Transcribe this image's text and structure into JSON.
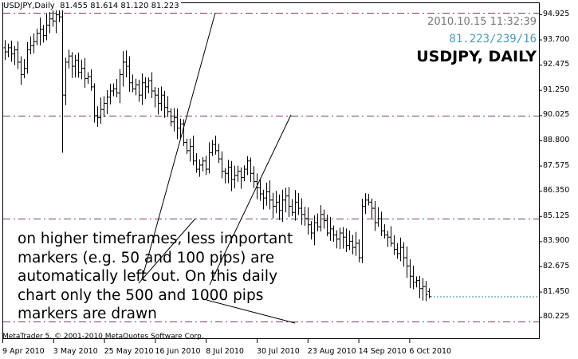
{
  "header": {
    "symbol_period": "USDJPY,Daily",
    "ohlc": "81.455 81.614 81.120 81.223"
  },
  "info": {
    "datetime": "2010.10.15 11:32:39",
    "price": "81.223∕239∕16",
    "title": "USDJPY, DAILY"
  },
  "annotation": "on higher timeframes, less important markers (e.g. 50 and 100 pips) are automatically left out. On this daily chart only the 500 and 1000 pips markers are drawn",
  "copyright": "MetaTrader 5, © 2001-2010 MetaQuotes Software Corp.",
  "colors": {
    "marker_line": "#7a3b6a",
    "bid_line": "#2f8f9f",
    "bars": "#000000",
    "background": "#ffffff"
  },
  "chart_data": {
    "type": "ohlc-bar",
    "y_range": [
      79.8,
      95.45
    ],
    "y_ticks": [
      "94.925",
      "93.700",
      "92.475",
      "91.250",
      "90.025",
      "88.800",
      "87.575",
      "86.350",
      "85.125",
      "83.900",
      "82.675",
      "81.450",
      "80.225"
    ],
    "x_ticks": [
      "9 Apr 2010",
      "3 May 2010",
      "25 May 2010",
      "16 Jun 2010",
      "8 Jul 2010",
      "30 Jul 2010",
      "23 Aug 2010",
      "14 Sep 2010",
      "6 Oct 2010"
    ],
    "marker_levels": [
      95.0,
      90.0,
      85.0,
      80.0
    ],
    "bid": 81.223,
    "closes": [
      93.1,
      93.3,
      93.0,
      93.2,
      92.6,
      92.0,
      92.3,
      93.2,
      93.4,
      93.6,
      94.0,
      94.2,
      93.9,
      94.4,
      94.7,
      94.6,
      94.9,
      94.8,
      91.0,
      92.6,
      92.9,
      92.4,
      92.7,
      92.1,
      92.3,
      91.8,
      91.9,
      91.4,
      90.0,
      89.9,
      90.3,
      90.6,
      90.9,
      91.2,
      91.3,
      91.1,
      92.0,
      92.6,
      92.4,
      91.6,
      91.3,
      91.5,
      91.0,
      91.6,
      91.4,
      91.7,
      91.2,
      91.0,
      90.6,
      91.0,
      90.4,
      90.2,
      89.7,
      89.9,
      89.4,
      89.6,
      88.7,
      88.3,
      88.5,
      87.8,
      87.4,
      87.6,
      87.8,
      87.4,
      88.2,
      88.6,
      88.3,
      87.9,
      87.3,
      87.2,
      87.5,
      86.9,
      87.1,
      87.3,
      87.0,
      87.4,
      87.8,
      87.2,
      86.8,
      86.5,
      86.2,
      86.0,
      86.3,
      85.9,
      85.6,
      85.8,
      85.4,
      85.9,
      86.1,
      85.6,
      85.3,
      85.8,
      85.5,
      85.2,
      85.0,
      84.7,
      84.3,
      84.8,
      84.6,
      85.2,
      84.9,
      84.3,
      84.5,
      84.2,
      84.0,
      84.3,
      84.1,
      83.7,
      83.9,
      83.6,
      83.8,
      83.1,
      85.6,
      85.9,
      85.8,
      85.5,
      84.8,
      85.0,
      84.4,
      84.2,
      84.1,
      83.8,
      83.5,
      83.3,
      83.6,
      83.1,
      82.7,
      82.2,
      81.9,
      82.0,
      81.6,
      81.7,
      81.3,
      81.223
    ],
    "last_bar": {
      "open": 81.455,
      "high": 81.614,
      "low": 81.12,
      "close": 81.223
    }
  }
}
